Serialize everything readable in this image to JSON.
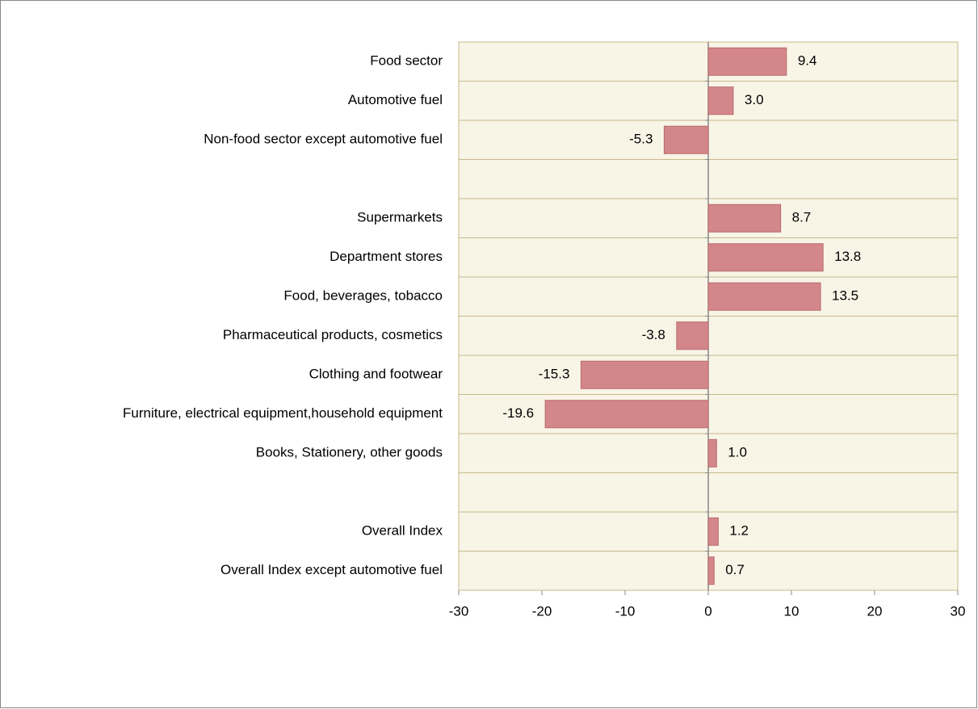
{
  "chart_data": {
    "type": "bar",
    "orientation": "horizontal",
    "categories": [
      "Food sector",
      "Automotive fuel",
      "Non-food sector except automotive fuel",
      null,
      "Supermarkets",
      "Department stores",
      "Food, beverages, tobacco",
      "Pharmaceutical products, cosmetics",
      "Clothing and footwear",
      "Furniture, electrical equipment,household equipment",
      "Books, Stationery, other goods",
      null,
      "Overall Index",
      "Overall Index except automotive fuel"
    ],
    "values": [
      9.4,
      3.0,
      -5.3,
      null,
      8.7,
      13.8,
      13.5,
      -3.8,
      -15.3,
      -19.6,
      1.0,
      null,
      1.2,
      0.7
    ],
    "value_labels": [
      "9.4",
      "3.0",
      "-5.3",
      null,
      "8.7",
      "13.8",
      "13.5",
      "-3.8",
      "-15.3",
      "-19.6",
      "1.0",
      null,
      "1.2",
      "0.7"
    ],
    "color": "#d4878a",
    "xlim": [
      -30,
      30
    ],
    "xticks": [
      -30,
      -20,
      -10,
      0,
      10,
      20,
      30
    ]
  }
}
